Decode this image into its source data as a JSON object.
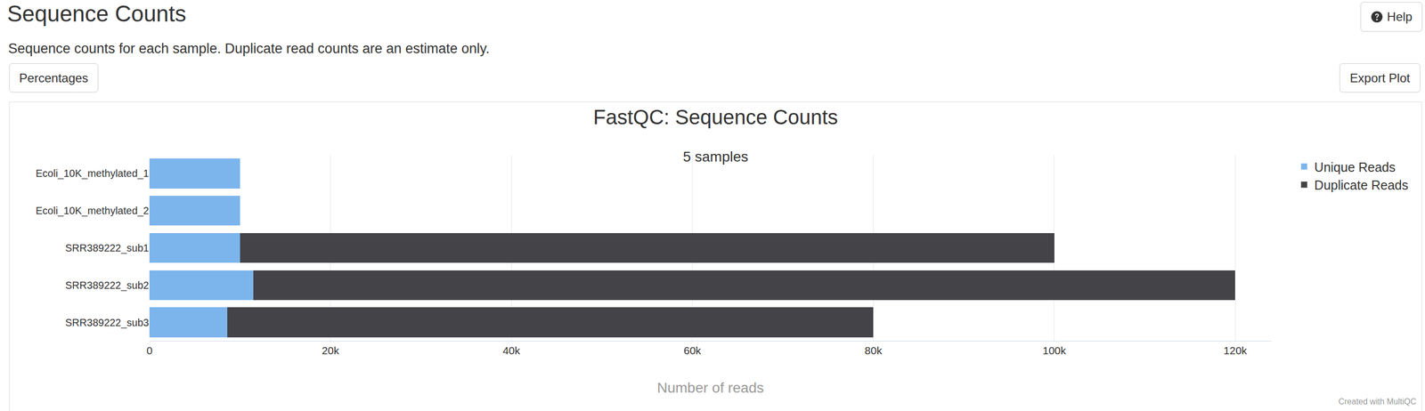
{
  "page": {
    "heading": "Sequence Counts",
    "help_button": "Help",
    "description": "Sequence counts for each sample. Duplicate read counts are an estimate only.",
    "buttons": [
      "Percentages",
      "Export Plot"
    ],
    "credit": "Created with MultiQC"
  },
  "chart_data": {
    "type": "bar",
    "orientation": "horizontal",
    "stacked": true,
    "title": "FastQC: Sequence Counts",
    "subtitle": "5 samples",
    "x_label": "Number of reads",
    "categories": [
      "Ecoli_10K_methylated_1",
      "Ecoli_10K_methylated_2",
      "SRR389222_sub1",
      "SRR389222_sub2",
      "SRR389222_sub3"
    ],
    "series": [
      {
        "name": "Unique Reads",
        "color": "#7cb5ec",
        "values": [
          10000,
          10000,
          10000,
          11500,
          8600
        ]
      },
      {
        "name": "Duplicate Reads",
        "color": "#434348",
        "values": [
          0,
          0,
          90000,
          108500,
          71400
        ]
      }
    ],
    "xlim": [
      0,
      124000
    ],
    "xticks": [
      0,
      {
        "value": 20000,
        "label": "20k"
      },
      {
        "value": 40000,
        "label": "40k"
      },
      {
        "value": 60000,
        "label": "60k"
      },
      {
        "value": 80000,
        "label": "80k"
      },
      {
        "value": 100000,
        "label": "100k"
      },
      {
        "value": 120000,
        "label": "120k"
      }
    ],
    "grid": true,
    "legend": "upper right"
  }
}
